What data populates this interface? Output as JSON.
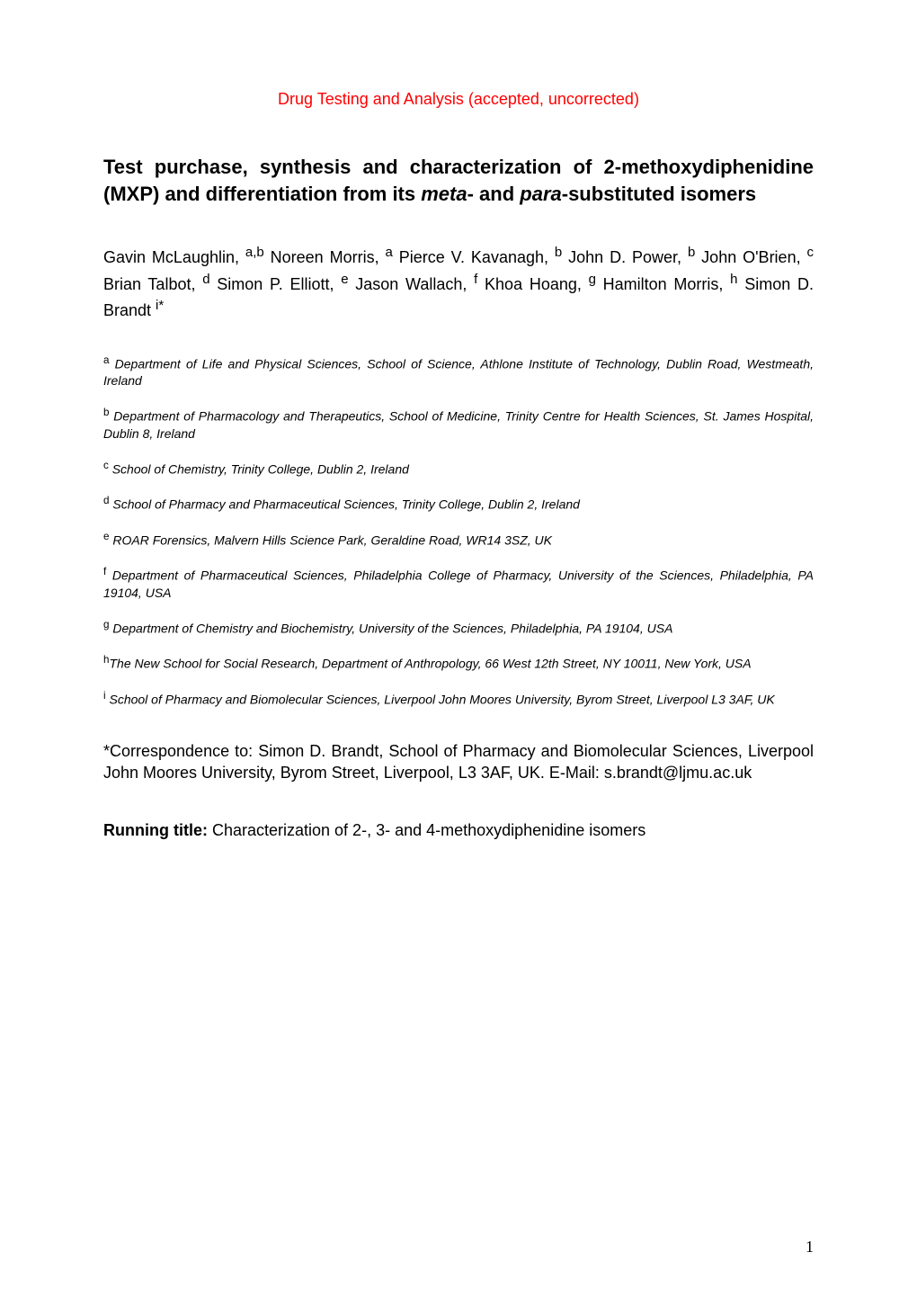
{
  "colors": {
    "journal": "#ff0000",
    "body": "#000000",
    "background": "#ffffff"
  },
  "typography": {
    "body_font": "Arial",
    "journal_fontsize_pt": 14,
    "title_fontsize_pt": 17,
    "author_fontsize_pt": 14,
    "affil_fontsize_pt": 11,
    "corr_fontsize_pt": 14,
    "pagenum_font": "Times New Roman",
    "pagenum_fontsize_pt": 14
  },
  "journal": "Drug Testing and Analysis (accepted, uncorrected)",
  "title": {
    "pre": "Test purchase, synthesis and characterization of 2-methoxydiphenidine (MXP) and differentiation from its ",
    "ital1": "meta",
    "mid": "- and ",
    "ital2": "para",
    "post": "-substituted isomers"
  },
  "authors": {
    "a1_name": "Gavin McLaughlin, ",
    "a1_sup": "a,b",
    "a2_name": " Noreen Morris, ",
    "a2_sup": "a",
    "a3_name": " Pierce V. Kavanagh, ",
    "a3_sup": "b",
    "a4_name": " John D. Power, ",
    "a4_sup": "b",
    "a5_name": " John O'Brien, ",
    "a5_sup": "c",
    "a6_name": " Brian Talbot, ",
    "a6_sup": "d",
    "a7_name": " Simon P. Elliott, ",
    "a7_sup": "e",
    "a8_name": " Jason Wallach, ",
    "a8_sup": "f",
    "a9_name": " Khoa Hoang, ",
    "a9_sup": "g",
    "a10_name": " Hamilton Morris, ",
    "a10_sup": "h",
    "a11_name": " Simon D. Brandt ",
    "a11_sup": "i*"
  },
  "affiliations": {
    "a": {
      "sup": "a",
      "text": " Department of Life and Physical Sciences, School of Science, Athlone Institute of Technology, Dublin Road, Westmeath, Ireland"
    },
    "b": {
      "sup": "b",
      "text": " Department of Pharmacology and Therapeutics, School of Medicine, Trinity Centre for Health Sciences, St. James Hospital, Dublin 8, Ireland"
    },
    "c": {
      "sup": "c",
      "text": " School of Chemistry, Trinity College, Dublin 2, Ireland"
    },
    "d": {
      "sup": "d",
      "text": " School of Pharmacy and Pharmaceutical Sciences, Trinity College, Dublin 2, Ireland"
    },
    "e": {
      "sup": "e",
      "text": " ROAR Forensics, Malvern Hills Science Park, Geraldine Road, WR14 3SZ, UK"
    },
    "f": {
      "sup": "f",
      "text": " Department of Pharmaceutical Sciences, Philadelphia College of Pharmacy, University of the Sciences, Philadelphia, PA 19104, USA"
    },
    "g": {
      "sup": "g",
      "text": " Department of Chemistry and Biochemistry, University of the Sciences, Philadelphia, PA 19104, USA"
    },
    "h": {
      "sup": "h",
      "text": "The New School for Social Research, Department of Anthropology, 66 West 12th Street, NY 10011, New York, USA"
    },
    "i": {
      "sup": "i",
      "text": " School of Pharmacy and Biomolecular Sciences, Liverpool John Moores University, Byrom Street, Liverpool L3 3AF, UK"
    }
  },
  "correspondence": "*Correspondence to: Simon D. Brandt, School of Pharmacy and Biomolecular Sciences, Liverpool John Moores University, Byrom Street, Liverpool, L3 3AF, UK. E-Mail: s.brandt@ljmu.ac.uk",
  "running": {
    "label": "Running title:",
    "text": " Characterization of 2-, 3- and 4-methoxydiphenidine isomers"
  },
  "page_number": "1"
}
